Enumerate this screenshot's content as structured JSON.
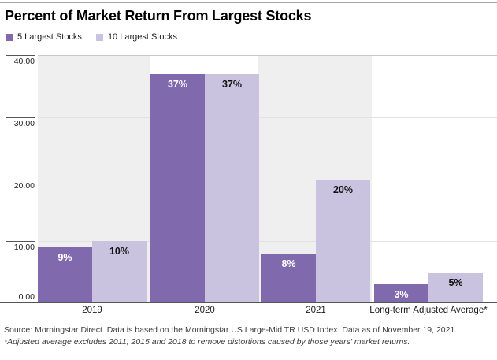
{
  "header": {
    "title": "Percent of Market Return From Largest Stocks"
  },
  "legend": [
    {
      "label": "5 Largest Stocks",
      "color": "#8169AE"
    },
    {
      "label": "10 Largest Stocks",
      "color": "#CAC3DF"
    }
  ],
  "chart_data": {
    "type": "bar",
    "title": "Percent of Market Return From Largest Stocks",
    "categories": [
      "2019",
      "2020",
      "2021",
      "Long-term Adjusted Average*"
    ],
    "series": [
      {
        "name": "5 Largest Stocks",
        "color": "#8169AE",
        "values": [
          9,
          37,
          8,
          3
        ]
      },
      {
        "name": "10 Largest Stocks",
        "color": "#CAC3DF",
        "values": [
          10,
          37,
          20,
          5
        ]
      }
    ],
    "value_suffix": "%",
    "xlabel": "",
    "ylabel": "",
    "ylim": [
      0,
      40
    ],
    "yticks": [
      "0.00",
      "10.00",
      "20.00",
      "30.00",
      "40.00"
    ],
    "grid": "horizontal",
    "legend_position": "top-left",
    "plot_band_colors": [
      "#EFEFEF",
      "#FFFFFF"
    ]
  },
  "footer": {
    "source_line": "Source: Morningstar Direct. Data is based on the Morningstar US Large-Mid TR USD Index. Data as of November 19, 2021.",
    "note_line": "*Adjusted average excludes 2011, 2015 and 2018 to remove distortions caused by those years' market returns."
  }
}
